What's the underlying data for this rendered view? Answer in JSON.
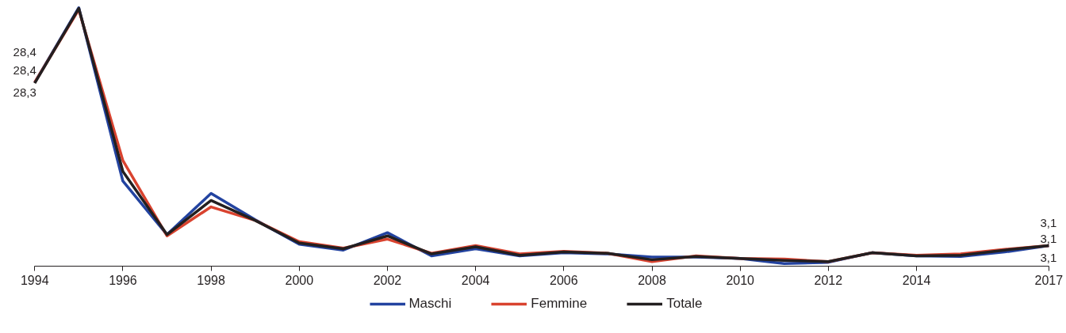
{
  "chart_data": {
    "type": "line",
    "x": [
      1994,
      1995,
      1996,
      1997,
      1998,
      1999,
      2000,
      2001,
      2002,
      2003,
      2004,
      2005,
      2006,
      2007,
      2008,
      2009,
      2010,
      2011,
      2012,
      2013,
      2014,
      2015,
      2016,
      2017
    ],
    "series": [
      {
        "name": "Maschi",
        "color": "#2343a0",
        "values": [
          28.4,
          40.0,
          13.1,
          4.8,
          11.2,
          7.1,
          3.3,
          2.4,
          5.1,
          1.5,
          2.6,
          1.5,
          2.0,
          1.8,
          1.3,
          1.3,
          1.1,
          0.3,
          0.5,
          2.0,
          1.5,
          1.4,
          2.1,
          3.1
        ],
        "value_labels": [
          "28,4",
          null,
          null,
          null,
          null,
          null,
          null,
          null,
          null,
          null,
          null,
          null,
          null,
          null,
          null,
          null,
          null,
          null,
          null,
          null,
          null,
          null,
          null,
          "3,1"
        ]
      },
      {
        "name": "Femmine",
        "color": "#d9432f",
        "values": [
          28.4,
          39.7,
          16.3,
          4.6,
          9.1,
          7.0,
          3.7,
          2.7,
          4.1,
          1.9,
          3.1,
          1.8,
          2.2,
          1.9,
          0.6,
          1.5,
          1.1,
          1.0,
          0.6,
          2.0,
          1.6,
          1.8,
          2.5,
          3.1
        ],
        "value_labels": [
          "28,4",
          null,
          null,
          null,
          null,
          null,
          null,
          null,
          null,
          null,
          null,
          null,
          null,
          null,
          null,
          null,
          null,
          null,
          null,
          null,
          null,
          null,
          null,
          "3,1"
        ]
      },
      {
        "name": "Totale",
        "color": "#231f20",
        "values": [
          28.3,
          39.9,
          14.6,
          4.8,
          10.1,
          7.0,
          3.5,
          2.6,
          4.6,
          1.8,
          2.9,
          1.6,
          2.1,
          1.9,
          0.9,
          1.4,
          1.1,
          0.8,
          0.6,
          2.0,
          1.5,
          1.6,
          2.4,
          3.1
        ],
        "value_labels": [
          "28,3",
          null,
          null,
          null,
          null,
          null,
          null,
          null,
          null,
          null,
          null,
          null,
          null,
          null,
          null,
          null,
          null,
          null,
          null,
          null,
          null,
          null,
          null,
          "3,1"
        ]
      }
    ],
    "xlim": [
      1994,
      2017
    ],
    "xticks": [
      1994,
      1996,
      1998,
      2000,
      2002,
      2004,
      2006,
      2008,
      2010,
      2012,
      2014,
      2017
    ],
    "tick_labels": "x",
    "legend": "bottom",
    "line_style": "solid"
  }
}
